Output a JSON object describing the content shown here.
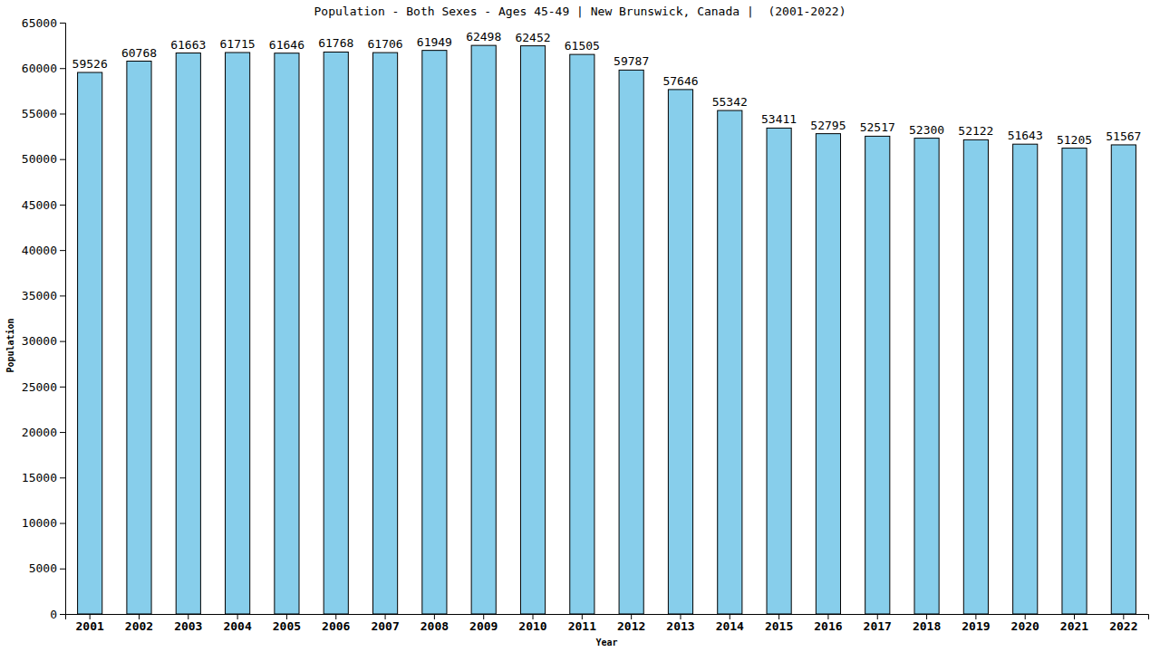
{
  "chart_data": {
    "type": "bar",
    "title": "Population - Both Sexes - Ages 45-49 | New Brunswick, Canada |  (2001-2022)",
    "x_label": "Year",
    "y_label": "Population",
    "categories": [
      "2001",
      "2002",
      "2003",
      "2004",
      "2005",
      "2006",
      "2007",
      "2008",
      "2009",
      "2010",
      "2011",
      "2012",
      "2013",
      "2014",
      "2015",
      "2016",
      "2017",
      "2018",
      "2019",
      "2020",
      "2021",
      "2022"
    ],
    "values": [
      59526,
      60768,
      61663,
      61715,
      61646,
      61768,
      61706,
      61949,
      62498,
      62452,
      61505,
      59787,
      57646,
      55342,
      53411,
      52795,
      52517,
      52300,
      52122,
      51643,
      51205,
      51567
    ],
    "color": "#87ceeb",
    "ylim": [
      0,
      65000
    ],
    "yticks": [
      0,
      5000,
      10000,
      15000,
      20000,
      25000,
      30000,
      35000,
      40000,
      45000,
      50000,
      55000,
      60000,
      65000
    ],
    "grid": false,
    "data_labels": true
  }
}
